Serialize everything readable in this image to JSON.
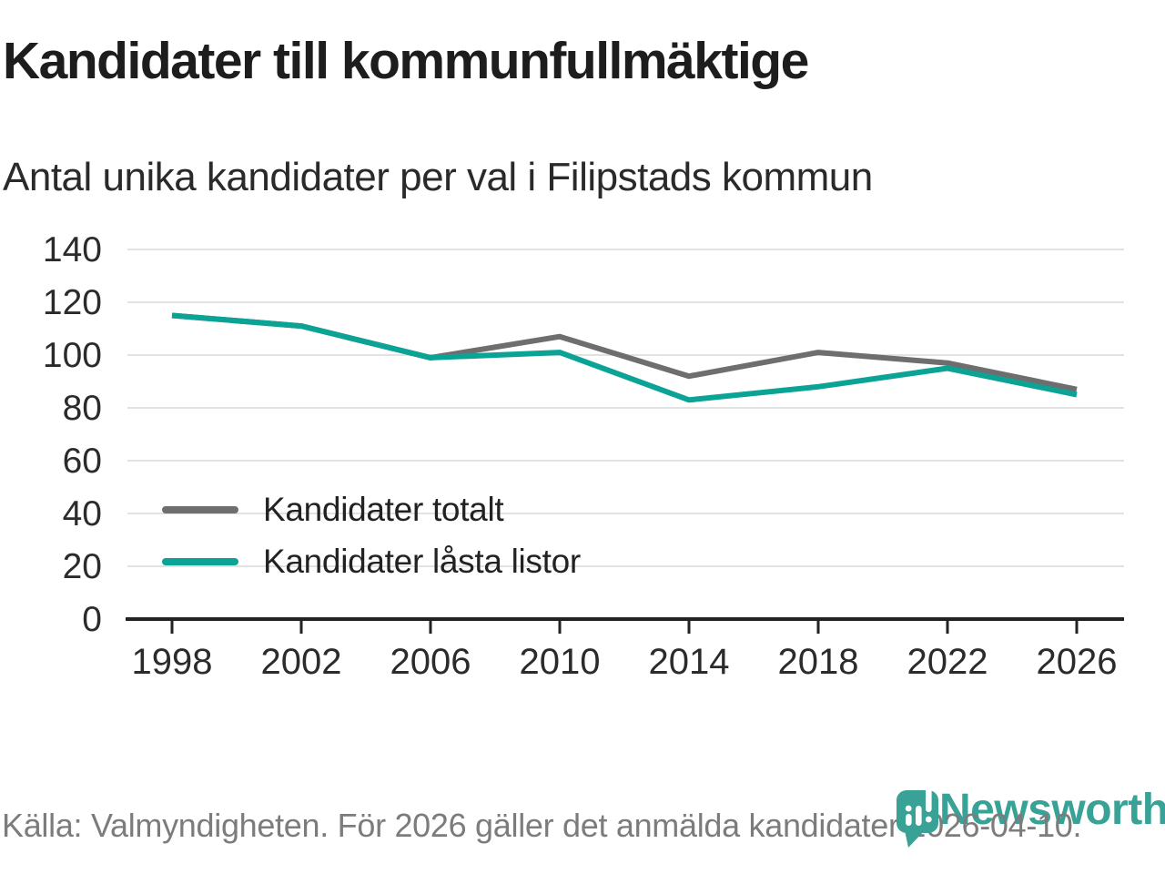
{
  "header": {
    "title": "Kandidater till kommunfullmäktige",
    "subtitle": "Antal unika kandidater per val i Filipstads kommun"
  },
  "chart_data": {
    "type": "line",
    "x": [
      1998,
      2002,
      2006,
      2010,
      2014,
      2018,
      2022,
      2026
    ],
    "x_tick_labels": [
      "1998",
      "2002",
      "2006",
      "2010",
      "2014",
      "2018",
      "2022",
      "2026"
    ],
    "series": [
      {
        "name": "Kandidater totalt",
        "color": "#6e6e6e",
        "values": [
          115,
          111,
          99,
          107,
          92,
          101,
          97,
          87
        ]
      },
      {
        "name": "Kandidater låsta listor",
        "color": "#0ba396",
        "values": [
          115,
          111,
          99,
          101,
          83,
          88,
          95,
          85
        ]
      }
    ],
    "ylim": [
      0,
      140
    ],
    "ytick_step": 20,
    "y_tick_labels": [
      "0",
      "20",
      "40",
      "60",
      "80",
      "100",
      "120",
      "140"
    ],
    "grid": true,
    "legend_position": "inside-left"
  },
  "footer": {
    "source": "Källa: Valmyndigheten. För 2026 gäller det anmälda kandidater 2026-04-10."
  },
  "branding": {
    "wordmark": "Newsworthy",
    "color": "#38a296"
  },
  "colors": {
    "accent_teal": "#0ba396",
    "line_gray": "#6e6e6e",
    "grid": "#e2e2e2",
    "axis": "#222222",
    "text": "#2b2b2b",
    "muted": "#7c7c7c"
  }
}
